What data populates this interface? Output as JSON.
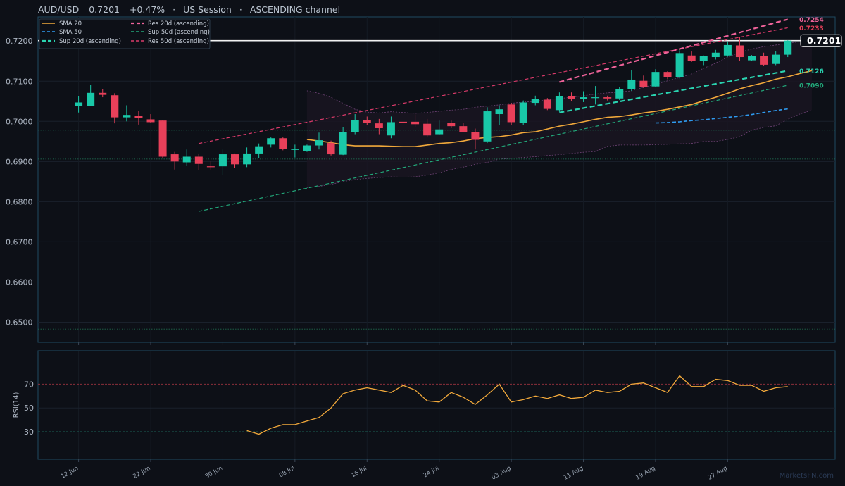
{
  "header": {
    "symbol": "AUD/USD",
    "price": "0.7201",
    "change": "+0.47%",
    "session": "US Session",
    "channel": "ASCENDING channel",
    "sep": "·"
  },
  "colors": {
    "background": "#0d1017",
    "bull": "#19c8a8",
    "bear": "#e8405a",
    "sma20": "#f2a93b",
    "sma50": "#2f9bf0",
    "res20": "#f0639a",
    "res50": "#d93a6a",
    "sup20": "#2ad3b0",
    "sup50": "#22a87a",
    "band": "#9a5aa0",
    "rsi": "#f2a93b"
  },
  "current_price_label": "0.7201",
  "level_labels": [
    {
      "text": "0.7254",
      "value": 0.7254,
      "color": "#f0639a"
    },
    {
      "text": "0.7233",
      "value": 0.7233,
      "color": "#e8405a"
    },
    {
      "text": "0.7126",
      "value": 0.7126,
      "color": "#2ad3b0"
    },
    {
      "text": "0.7090",
      "value": 0.709,
      "color": "#22a87a"
    }
  ],
  "legend": [
    {
      "label": "SMA 20",
      "style": "solid",
      "color": "#f2a93b"
    },
    {
      "label": "SMA 50",
      "style": "dash",
      "color": "#2f9bf0"
    },
    {
      "label": "Sup 20d (ascending)",
      "style": "dash-bold",
      "color": "#2ad3b0"
    },
    {
      "label": "Res 20d (ascending)",
      "style": "dash-bold",
      "color": "#f0639a"
    },
    {
      "label": "Sup 50d (ascending)",
      "style": "dash",
      "color": "#22a87a"
    },
    {
      "label": "Res 50d (ascending)",
      "style": "dash",
      "color": "#d93a6a"
    }
  ],
  "watermark": "MarketsFN.com",
  "chart_data": [
    {
      "type": "candlestick",
      "ylim": [
        0.645,
        0.726
      ],
      "yticks": [
        "0.6500",
        "0.6600",
        "0.6700",
        "0.6800",
        "0.6900",
        "0.7000",
        "0.7100",
        "0.7200"
      ],
      "ytick_values": [
        0.65,
        0.66,
        0.67,
        0.68,
        0.69,
        0.7,
        0.71,
        0.72
      ],
      "xticks": [
        "12 Jun",
        "22 Jun",
        "30 Jun",
        "08 Jul",
        "16 Jul",
        "24 Jul",
        "03 Aug",
        "11 Aug",
        "19 Aug",
        "27 Aug"
      ],
      "xtick_index": [
        0,
        6,
        12,
        18,
        24,
        30,
        36,
        42,
        48,
        54
      ],
      "horizontal_levels": [
        0.7201,
        0.6978,
        0.6906,
        0.6483
      ],
      "candles": [
        {
          "o": 0.7039,
          "h": 0.7063,
          "l": 0.7022,
          "c": 0.7047
        },
        {
          "o": 0.7039,
          "h": 0.709,
          "l": 0.7039,
          "c": 0.7071
        },
        {
          "o": 0.7071,
          "h": 0.708,
          "l": 0.706,
          "c": 0.7066
        },
        {
          "o": 0.7065,
          "h": 0.707,
          "l": 0.6995,
          "c": 0.701
        },
        {
          "o": 0.701,
          "h": 0.704,
          "l": 0.7,
          "c": 0.7016
        },
        {
          "o": 0.7014,
          "h": 0.7026,
          "l": 0.6992,
          "c": 0.7008
        },
        {
          "o": 0.7005,
          "h": 0.7018,
          "l": 0.6996,
          "c": 0.6998
        },
        {
          "o": 0.7002,
          "h": 0.7004,
          "l": 0.6908,
          "c": 0.6912
        },
        {
          "o": 0.6918,
          "h": 0.6924,
          "l": 0.688,
          "c": 0.69
        },
        {
          "o": 0.6898,
          "h": 0.693,
          "l": 0.689,
          "c": 0.6912
        },
        {
          "o": 0.6912,
          "h": 0.692,
          "l": 0.6878,
          "c": 0.6894
        },
        {
          "o": 0.6888,
          "h": 0.69,
          "l": 0.688,
          "c": 0.6887
        },
        {
          "o": 0.6888,
          "h": 0.693,
          "l": 0.6866,
          "c": 0.6918
        },
        {
          "o": 0.6918,
          "h": 0.692,
          "l": 0.6884,
          "c": 0.6893
        },
        {
          "o": 0.6893,
          "h": 0.6935,
          "l": 0.6886,
          "c": 0.692
        },
        {
          "o": 0.692,
          "h": 0.6945,
          "l": 0.6908,
          "c": 0.6938
        },
        {
          "o": 0.6942,
          "h": 0.696,
          "l": 0.6935,
          "c": 0.6958
        },
        {
          "o": 0.6958,
          "h": 0.696,
          "l": 0.6928,
          "c": 0.6932
        },
        {
          "o": 0.693,
          "h": 0.6942,
          "l": 0.691,
          "c": 0.6931
        },
        {
          "o": 0.6926,
          "h": 0.6942,
          "l": 0.6924,
          "c": 0.694
        },
        {
          "o": 0.694,
          "h": 0.6972,
          "l": 0.693,
          "c": 0.6953
        },
        {
          "o": 0.6946,
          "h": 0.6952,
          "l": 0.6915,
          "c": 0.6918
        },
        {
          "o": 0.6917,
          "h": 0.6986,
          "l": 0.6916,
          "c": 0.6974
        },
        {
          "o": 0.6974,
          "h": 0.7018,
          "l": 0.6968,
          "c": 0.7003
        },
        {
          "o": 0.7004,
          "h": 0.7012,
          "l": 0.699,
          "c": 0.6996
        },
        {
          "o": 0.6995,
          "h": 0.7006,
          "l": 0.6968,
          "c": 0.6983
        },
        {
          "o": 0.6965,
          "h": 0.7012,
          "l": 0.6958,
          "c": 0.6998
        },
        {
          "o": 0.6999,
          "h": 0.7027,
          "l": 0.6987,
          "c": 0.6998
        },
        {
          "o": 0.6999,
          "h": 0.7017,
          "l": 0.6986,
          "c": 0.6993
        },
        {
          "o": 0.6994,
          "h": 0.7006,
          "l": 0.696,
          "c": 0.6965
        },
        {
          "o": 0.6968,
          "h": 0.7002,
          "l": 0.6966,
          "c": 0.698
        },
        {
          "o": 0.6997,
          "h": 0.7002,
          "l": 0.6983,
          "c": 0.6988
        },
        {
          "o": 0.6988,
          "h": 0.6997,
          "l": 0.6974,
          "c": 0.6974
        },
        {
          "o": 0.6973,
          "h": 0.6982,
          "l": 0.693,
          "c": 0.6954
        },
        {
          "o": 0.695,
          "h": 0.7035,
          "l": 0.6946,
          "c": 0.7025
        },
        {
          "o": 0.7018,
          "h": 0.704,
          "l": 0.6991,
          "c": 0.703
        },
        {
          "o": 0.7042,
          "h": 0.7046,
          "l": 0.699,
          "c": 0.6998
        },
        {
          "o": 0.6997,
          "h": 0.7052,
          "l": 0.699,
          "c": 0.7047
        },
        {
          "o": 0.7046,
          "h": 0.7064,
          "l": 0.704,
          "c": 0.7056
        },
        {
          "o": 0.7054,
          "h": 0.7058,
          "l": 0.7028,
          "c": 0.7031
        },
        {
          "o": 0.7028,
          "h": 0.7072,
          "l": 0.7024,
          "c": 0.7062
        },
        {
          "o": 0.7062,
          "h": 0.7072,
          "l": 0.705,
          "c": 0.7055
        },
        {
          "o": 0.7055,
          "h": 0.7075,
          "l": 0.7048,
          "c": 0.706
        },
        {
          "o": 0.706,
          "h": 0.7088,
          "l": 0.7042,
          "c": 0.706
        },
        {
          "o": 0.706,
          "h": 0.7064,
          "l": 0.7052,
          "c": 0.7057
        },
        {
          "o": 0.7057,
          "h": 0.7085,
          "l": 0.7053,
          "c": 0.708
        },
        {
          "o": 0.7081,
          "h": 0.7128,
          "l": 0.7076,
          "c": 0.7104
        },
        {
          "o": 0.7101,
          "h": 0.7114,
          "l": 0.7083,
          "c": 0.7085
        },
        {
          "o": 0.7087,
          "h": 0.713,
          "l": 0.7085,
          "c": 0.7123
        },
        {
          "o": 0.7123,
          "h": 0.7125,
          "l": 0.7105,
          "c": 0.711
        },
        {
          "o": 0.711,
          "h": 0.7177,
          "l": 0.7107,
          "c": 0.717
        },
        {
          "o": 0.7164,
          "h": 0.7174,
          "l": 0.7148,
          "c": 0.7151
        },
        {
          "o": 0.7151,
          "h": 0.7164,
          "l": 0.714,
          "c": 0.7162
        },
        {
          "o": 0.716,
          "h": 0.7178,
          "l": 0.7154,
          "c": 0.7171
        },
        {
          "o": 0.7164,
          "h": 0.7199,
          "l": 0.7161,
          "c": 0.719
        },
        {
          "o": 0.7189,
          "h": 0.721,
          "l": 0.715,
          "c": 0.716
        },
        {
          "o": 0.7152,
          "h": 0.7165,
          "l": 0.715,
          "c": 0.7162
        },
        {
          "o": 0.7163,
          "h": 0.7171,
          "l": 0.7138,
          "c": 0.7141
        },
        {
          "o": 0.7143,
          "h": 0.7174,
          "l": 0.714,
          "c": 0.7166
        },
        {
          "o": 0.7166,
          "h": 0.7202,
          "l": 0.716,
          "c": 0.7201
        }
      ],
      "series": [
        {
          "name": "SMA 20",
          "start_index": 19,
          "values": [
            0.6955,
            0.6951,
            0.6947,
            0.6942,
            0.6939,
            0.6939,
            0.6939,
            0.6938,
            0.6937,
            0.6937,
            0.6941,
            0.6945,
            0.6947,
            0.6951,
            0.6957,
            0.696,
            0.6962,
            0.6966,
            0.6972,
            0.6974,
            0.6981,
            0.6988,
            0.6993,
            0.6999,
            0.7005,
            0.701,
            0.7012,
            0.7016,
            0.7021,
            0.7025,
            0.703,
            0.7036,
            0.7042,
            0.7051,
            0.706,
            0.707,
            0.7081,
            0.7089,
            0.7096,
            0.7105,
            0.7111,
            0.7119,
            0.7126
          ]
        },
        {
          "name": "SMA 50",
          "start_index": 48,
          "values": [
            0.6996,
            0.6997,
            0.6999,
            0.7002,
            0.7004,
            0.7007,
            0.701,
            0.7013,
            0.7017,
            0.7022,
            0.7027,
            0.7031
          ]
        },
        {
          "name": "Sup 20d (ascending)",
          "x": [
            40,
            59
          ],
          "y": [
            0.7022,
            0.7126
          ]
        },
        {
          "name": "Res 20d (ascending)",
          "x": [
            40,
            59
          ],
          "y": [
            0.7098,
            0.7254
          ]
        },
        {
          "name": "Sup 50d (ascending)",
          "x": [
            10,
            59
          ],
          "y": [
            0.6776,
            0.709
          ]
        },
        {
          "name": "Res 50d (ascending)",
          "x": [
            10,
            59
          ],
          "y": [
            0.6945,
            0.7233
          ]
        },
        {
          "name": "Band upper",
          "start_index": 19,
          "values": [
            0.7076,
            0.707,
            0.706,
            0.7045,
            0.703,
            0.7023,
            0.7021,
            0.7024,
            0.7022,
            0.702,
            0.7022,
            0.7025,
            0.7028,
            0.703,
            0.7035,
            0.7038,
            0.7041,
            0.7045,
            0.7048,
            0.705,
            0.7054,
            0.7057,
            0.706,
            0.7064,
            0.7068,
            0.7071,
            0.7073,
            0.7076,
            0.7085,
            0.7092,
            0.7101,
            0.7109,
            0.7118,
            0.7132,
            0.7145,
            0.716,
            0.7172,
            0.718,
            0.7186,
            0.719,
            0.7195,
            0.7198,
            0.72
          ]
        },
        {
          "name": "Band lower",
          "start_index": 19,
          "values": [
            0.6835,
            0.6838,
            0.6843,
            0.685,
            0.6855,
            0.6858,
            0.686,
            0.6862,
            0.6861,
            0.6862,
            0.6866,
            0.6872,
            0.688,
            0.6886,
            0.6893,
            0.6898,
            0.6906,
            0.6908,
            0.691,
            0.6912,
            0.6915,
            0.6917,
            0.692,
            0.6923,
            0.6925,
            0.6938,
            0.6941,
            0.6941,
            0.6941,
            0.6942,
            0.6943,
            0.6944,
            0.6945,
            0.695,
            0.695,
            0.6955,
            0.6962,
            0.6978,
            0.6985,
            0.6989,
            0.7005,
            0.7018,
            0.7028
          ]
        }
      ]
    },
    {
      "type": "line",
      "ylabel": "RSI(14)",
      "ylim": [
        7,
        98
      ],
      "yticks": [
        "30",
        "50",
        "70"
      ],
      "ytick_values": [
        30,
        50,
        70
      ],
      "reference_lines": [
        30,
        70
      ],
      "series": [
        {
          "name": "RSI(14)",
          "start_index": 14,
          "values": [
            31,
            28,
            33,
            36,
            36,
            39,
            42,
            50,
            62,
            65,
            67,
            65,
            63,
            69,
            65,
            56,
            55,
            63,
            59,
            53,
            61,
            70,
            55,
            57,
            60,
            58,
            61,
            58,
            59,
            65,
            63,
            64,
            70,
            71,
            67,
            63,
            77,
            68,
            68,
            74,
            73,
            69,
            69,
            64,
            67,
            68
          ]
        }
      ]
    }
  ]
}
